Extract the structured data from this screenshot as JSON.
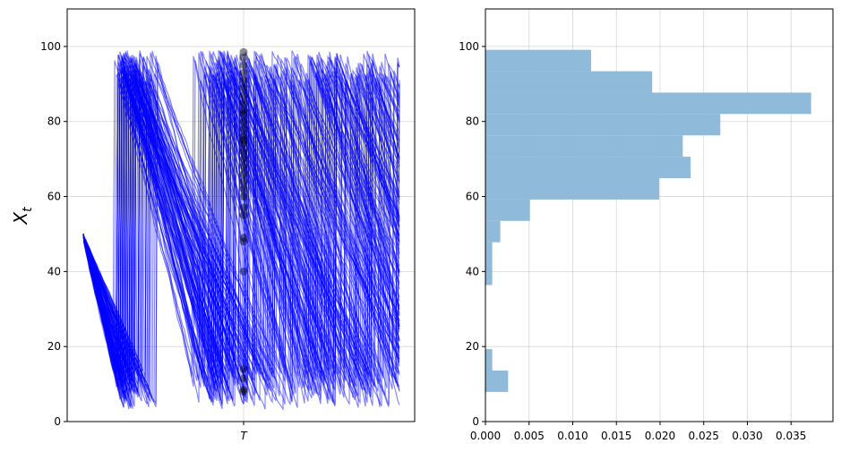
{
  "chart_data": [
    {
      "type": "line",
      "ylabel": "X_t",
      "xticks": [
        "T"
      ],
      "ylim": [
        0,
        110
      ],
      "yticks": [
        0,
        20,
        40,
        60,
        80,
        100
      ],
      "grid": true,
      "line_color": "#0000ff",
      "marker_color": "#000000",
      "start_value": 50,
      "values_at_T": [
        98.5,
        97,
        95,
        93,
        91,
        89,
        87,
        85,
        83,
        82,
        80,
        78,
        76,
        75,
        74,
        72,
        70,
        68,
        66,
        64,
        62,
        60,
        57,
        55,
        49,
        48,
        40,
        14,
        11.5,
        8.5,
        8
      ]
    },
    {
      "type": "bar",
      "orientation": "horizontal",
      "bin_edges": [
        7.9,
        13.6,
        19.3,
        25.0,
        30.7,
        36.4,
        42.1,
        47.8,
        53.5,
        59.2,
        64.9,
        70.6,
        76.3,
        82.0,
        87.7,
        93.4,
        99.1
      ],
      "values": [
        0.0026,
        0.00078,
        0,
        0,
        0,
        0.00078,
        0.00078,
        0.0017,
        0.0051,
        0.0199,
        0.0235,
        0.0226,
        0.0269,
        0.0373,
        0.0191,
        0.0121
      ],
      "xlim": [
        0,
        0.0398
      ],
      "ylim": [
        0,
        110
      ],
      "xticks": [
        "0.000",
        "0.005",
        "0.010",
        "0.015",
        "0.020",
        "0.025",
        "0.030",
        "0.035"
      ],
      "yticks": [
        0,
        20,
        40,
        60,
        80,
        100
      ],
      "grid": true,
      "bar_color": "#8fbad9"
    }
  ]
}
